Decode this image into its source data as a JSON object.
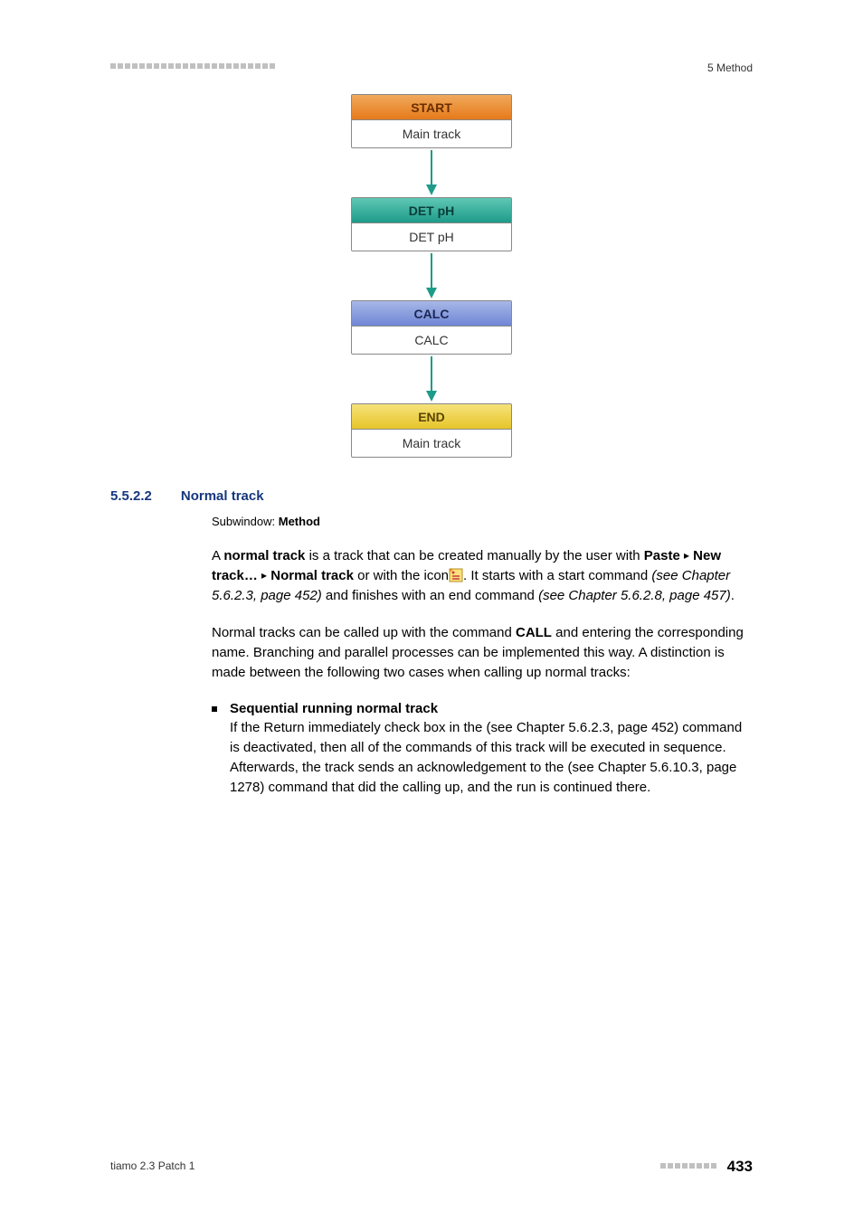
{
  "header": {
    "right": "5 Method",
    "dot_count": 23,
    "dot_color": "#c0c0c0"
  },
  "diagram": {
    "arrow_color": "#1e9b8a",
    "nodes": [
      {
        "head": "START",
        "body": "Main track",
        "head_class": "start-head"
      },
      {
        "head": "DET pH",
        "body": "DET pH",
        "head_class": "det-head"
      },
      {
        "head": "CALC",
        "body": "CALC",
        "head_class": "calc-head"
      },
      {
        "head": "END",
        "body": "Main track",
        "head_class": "end-head"
      }
    ]
  },
  "section": {
    "number": "5.5.2.2",
    "title": "Normal track",
    "subwindow_label": "Subwindow:",
    "subwindow_value": "Method"
  },
  "para1": {
    "t1": "A ",
    "bold1": "normal track",
    "t2": " is a track that can be created manually by the user with ",
    "bold2": "Paste",
    "arrow": "▸",
    "bold3": "New track…",
    "bold4": "Normal track",
    "t3": " or with the icon",
    "t4": ". It starts with a start command ",
    "it1": "(see Chapter 5.6.2.3, page 452)",
    "t5": " and finishes with an end command ",
    "it2": "(see Chapter 5.6.2.8, page 457)",
    "t6": "."
  },
  "para2": {
    "t1": "Normal tracks can be called up with the command ",
    "bold1": "CALL",
    "t2": " and entering the corresponding name. Branching and parallel processes can be implemented this way. A distinction is made between the following two cases when calling up normal tracks:"
  },
  "bullet": {
    "heading": "Sequential running normal track",
    "t1": "If the ",
    "bold1": "Return immediately",
    "t2": " check box in the ",
    "it1": "(see Chapter 5.6.2.3, page 452)",
    "t3": " command is deactivated, then all of the commands of this track will be executed in sequence. Afterwards, the track sends an acknowledgement to the ",
    "it2": "(see Chapter 5.6.10.3, page 1278)",
    "t4": " command that did the calling up, and the run is continued there."
  },
  "footer": {
    "left": "tiamo 2.3 Patch 1",
    "page": "433",
    "dot_count": 8,
    "dot_color": "#c0c0c0"
  },
  "icon_colors": {
    "bg": "#ffe07a",
    "corner": "#e08a1a",
    "line": "#c04040"
  }
}
